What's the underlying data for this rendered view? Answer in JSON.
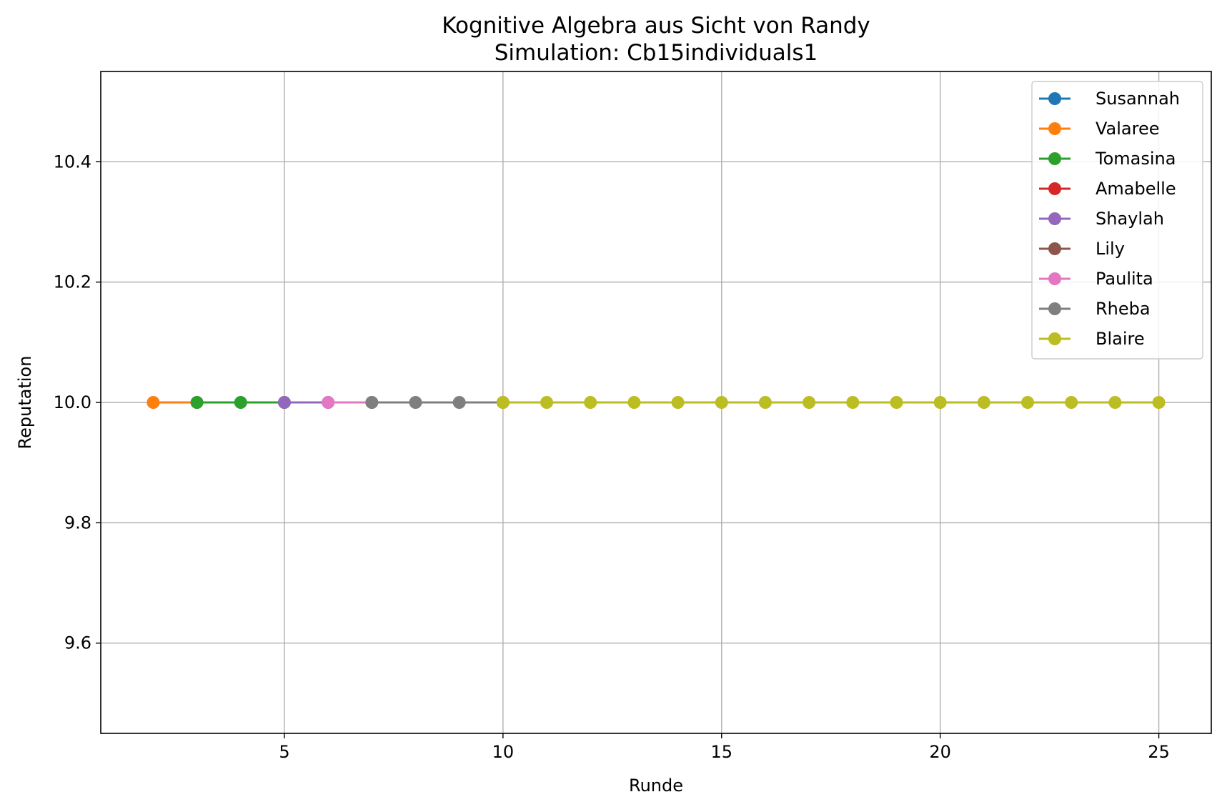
{
  "chart_data": {
    "type": "line",
    "title": "Kognitive Algebra aus Sicht von Randy",
    "subtitle": "Simulation: Cb15individuals1",
    "xlabel": "Runde",
    "ylabel": "Reputation",
    "xlim": [
      0.8,
      26.2
    ],
    "ylim": [
      9.45,
      10.55
    ],
    "xticks": [
      5,
      10,
      15,
      20,
      25
    ],
    "yticks": [
      9.6,
      9.8,
      10.0,
      10.2,
      10.4
    ],
    "ytick_labels": [
      "9.6",
      "9.8",
      "10.0",
      "10.2",
      "10.4"
    ],
    "grid": true,
    "legend_position": "top-right",
    "series": [
      {
        "name": "Susannah",
        "color": "#1f77b4",
        "x": [],
        "y": []
      },
      {
        "name": "Valaree",
        "color": "#ff7f0e",
        "x": [
          2,
          3
        ],
        "y": [
          10.0,
          10.0
        ]
      },
      {
        "name": "Tomasina",
        "color": "#2ca02c",
        "x": [
          3,
          4,
          5
        ],
        "y": [
          10.0,
          10.0,
          10.0
        ]
      },
      {
        "name": "Amabelle",
        "color": "#d62728",
        "x": [],
        "y": []
      },
      {
        "name": "Shaylah",
        "color": "#9467bd",
        "x": [
          5,
          6
        ],
        "y": [
          10.0,
          10.0
        ]
      },
      {
        "name": "Lily",
        "color": "#8c564b",
        "x": [],
        "y": []
      },
      {
        "name": "Paulita",
        "color": "#e377c2",
        "x": [
          6,
          7
        ],
        "y": [
          10.0,
          10.0
        ]
      },
      {
        "name": "Rheba",
        "color": "#7f7f7f",
        "x": [
          7,
          8,
          9,
          10
        ],
        "y": [
          10.0,
          10.0,
          10.0,
          10.0
        ]
      },
      {
        "name": "Blaire",
        "color": "#bcbd22",
        "x": [
          10,
          11,
          12,
          13,
          14,
          15,
          16,
          17,
          18,
          19,
          20,
          21,
          22,
          23,
          24,
          25
        ],
        "y": [
          10.0,
          10.0,
          10.0,
          10.0,
          10.0,
          10.0,
          10.0,
          10.0,
          10.0,
          10.0,
          10.0,
          10.0,
          10.0,
          10.0,
          10.0,
          10.0
        ]
      }
    ]
  }
}
